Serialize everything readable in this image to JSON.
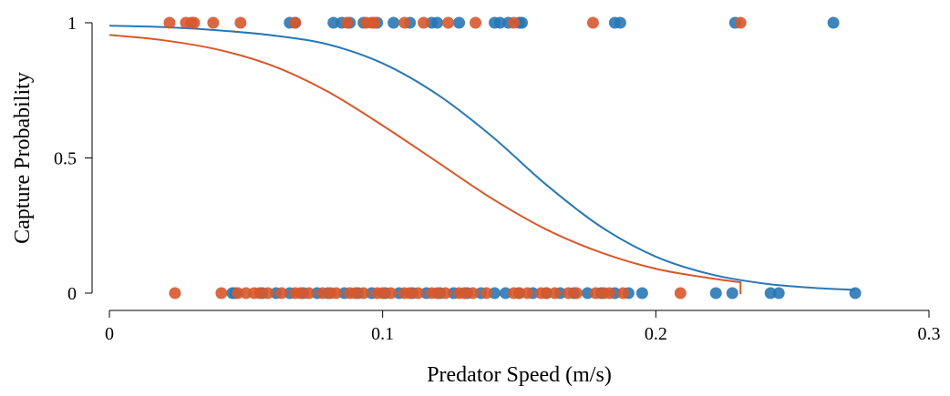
{
  "chart_data": {
    "type": "scatter",
    "title": "",
    "xlabel": "Predator Speed (m/s)",
    "ylabel": "Capture Probability",
    "xlim": [
      0,
      0.3
    ],
    "ylim": [
      0,
      1
    ],
    "xticks": [
      {
        "value": 0,
        "label": "0"
      },
      {
        "value": 0.1,
        "label": "0.1"
      },
      {
        "value": 0.2,
        "label": "0.2"
      },
      {
        "value": 0.3,
        "label": "0.3"
      }
    ],
    "yticks": [
      {
        "value": 0,
        "label": "0"
      },
      {
        "value": 0.5,
        "label": "0.5"
      },
      {
        "value": 1,
        "label": "1"
      }
    ],
    "grid": false,
    "legend": false,
    "series": [
      {
        "color": "#2878b5",
        "points_y1": [
          0.066,
          0.068,
          0.082,
          0.085,
          0.088,
          0.093,
          0.098,
          0.104,
          0.11,
          0.118,
          0.12,
          0.128,
          0.141,
          0.143,
          0.146,
          0.15,
          0.151,
          0.185,
          0.187,
          0.229,
          0.265
        ],
        "points_y0": [
          0.045,
          0.046,
          0.056,
          0.061,
          0.066,
          0.071,
          0.076,
          0.08,
          0.086,
          0.091,
          0.096,
          0.101,
          0.106,
          0.111,
          0.116,
          0.121,
          0.126,
          0.131,
          0.136,
          0.141,
          0.145,
          0.15,
          0.155,
          0.16,
          0.165,
          0.17,
          0.175,
          0.18,
          0.185,
          0.19,
          0.195,
          0.222,
          0.228,
          0.242,
          0.245,
          0.273
        ],
        "curve": {
          "x": [
            0,
            0.02,
            0.04,
            0.06,
            0.08,
            0.1,
            0.12,
            0.14,
            0.16,
            0.18,
            0.2,
            0.22,
            0.24,
            0.26,
            0.273
          ],
          "y": [
            0.989,
            0.984,
            0.972,
            0.953,
            0.92,
            0.85,
            0.735,
            0.58,
            0.4,
            0.245,
            0.135,
            0.07,
            0.035,
            0.018,
            0.012
          ]
        }
      },
      {
        "color": "#d8582c",
        "points_y1": [
          0.022,
          0.028,
          0.03,
          0.031,
          0.038,
          0.048,
          0.068,
          0.087,
          0.094,
          0.096,
          0.097,
          0.108,
          0.115,
          0.124,
          0.134,
          0.148,
          0.177,
          0.231
        ],
        "points_y0": [
          0.024,
          0.041,
          0.047,
          0.05,
          0.053,
          0.055,
          0.058,
          0.063,
          0.068,
          0.07,
          0.073,
          0.078,
          0.081,
          0.083,
          0.088,
          0.09,
          0.093,
          0.098,
          0.1,
          0.103,
          0.108,
          0.11,
          0.113,
          0.118,
          0.12,
          0.123,
          0.128,
          0.13,
          0.133,
          0.138,
          0.148,
          0.15,
          0.153,
          0.158,
          0.16,
          0.163,
          0.168,
          0.171,
          0.178,
          0.181,
          0.183,
          0.188,
          0.209
        ],
        "curve": {
          "x": [
            0,
            0.02,
            0.04,
            0.06,
            0.08,
            0.1,
            0.12,
            0.14,
            0.16,
            0.18,
            0.2,
            0.22,
            0.231
          ],
          "y": [
            0.955,
            0.935,
            0.9,
            0.84,
            0.745,
            0.62,
            0.485,
            0.35,
            0.235,
            0.15,
            0.09,
            0.055,
            0.04
          ]
        },
        "curve_end_tick": [
          0.231,
          0.0
        ]
      }
    ]
  }
}
